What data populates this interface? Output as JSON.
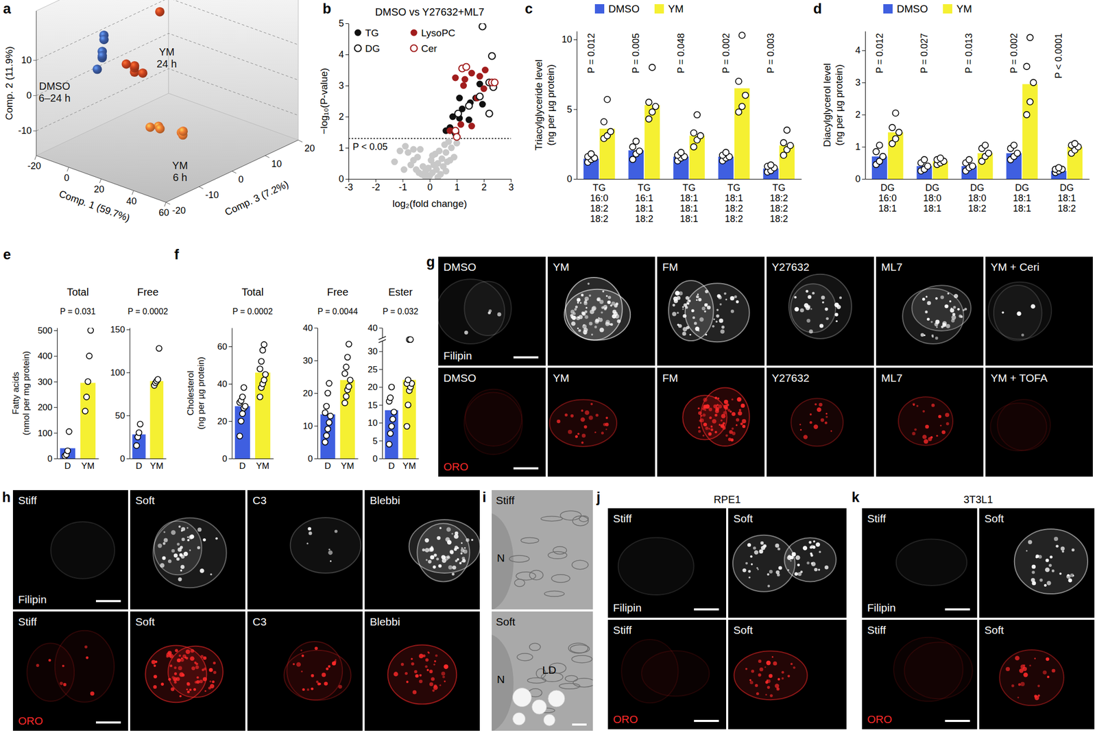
{
  "chart_data": [
    {
      "panel": "a",
      "type": "scatter3d",
      "x_label": "Comp. 1 (59.7%)",
      "y_label": "Comp. 2 (11.9%)",
      "z_label": "Comp. 3 (7.2%)",
      "xlim": [
        -20,
        60
      ],
      "xticks": [
        -20,
        0,
        20,
        40,
        60
      ],
      "ylim": [
        -17,
        24
      ],
      "yticks": [
        -10,
        0,
        10
      ],
      "zlim": [
        -20,
        20
      ],
      "zticks": [
        -20,
        -10,
        0,
        10,
        20
      ],
      "grid": true,
      "series": [
        {
          "name": "DMSO 6–24 h",
          "color": "#3d5ea8",
          "x": [
            -15,
            -14,
            -12,
            -16,
            -13,
            -17
          ],
          "y": [
            10,
            6,
            5,
            4,
            2,
            8
          ],
          "z": [
            -2,
            -3,
            -4,
            -2,
            -5,
            -1
          ]
        },
        {
          "name": "YM 24 h",
          "color": "#c9431f",
          "x": [
            10,
            12,
            8,
            11,
            9,
            -5
          ],
          "y": [
            5,
            7,
            6,
            4,
            8,
            13
          ],
          "z": [
            -5,
            -6,
            -4,
            -3,
            -7,
            10
          ]
        },
        {
          "name": "YM 6 h",
          "color": "#ec7a32",
          "x": [
            35,
            40,
            45,
            38,
            50,
            42
          ],
          "y": [
            -4,
            -3,
            -5,
            -2,
            -4,
            -6
          ],
          "z": [
            -10,
            -12,
            -8,
            -14,
            -10,
            -6
          ]
        }
      ]
    },
    {
      "panel": "b",
      "type": "scatter",
      "title": "DMSO vs Y27632+ML7",
      "x_label": "log₂(fold change)",
      "y_label": "−log₁₀(P-value)",
      "xlim": [
        -3,
        3
      ],
      "xticks": [
        -3,
        -2,
        -1,
        0,
        1,
        2,
        3
      ],
      "ylim": [
        0,
        5
      ],
      "yticks": [
        0,
        1,
        2,
        3,
        4,
        5
      ],
      "legend": "upper left",
      "reference_line": {
        "y": 1.3,
        "label": "P < 0.05"
      },
      "series": [
        {
          "color": "#c8c8c8",
          "marker": "circle",
          "x": [
            -1.3,
            -1.1,
            -0.9,
            -0.8,
            -0.7,
            -0.6,
            -0.5,
            -0.45,
            -0.4,
            -0.3,
            -0.25,
            -0.2,
            -0.15,
            -0.1,
            -0.05,
            0,
            0.05,
            0.1,
            0.15,
            0.2,
            0.25,
            0.3,
            0.35,
            0.4,
            0.45,
            0.5,
            0.55,
            0.6,
            0.65,
            0.7,
            0.8,
            0.9,
            1.0,
            -0.95,
            -0.35,
            0.1,
            0.3,
            0.6,
            0.75,
            -0.6
          ],
          "y": [
            0.55,
            0.9,
            1.05,
            0.85,
            0.45,
            0.6,
            0.3,
            0.7,
            0.2,
            0.15,
            0.4,
            0.1,
            0.25,
            0.05,
            0.35,
            0.1,
            0.6,
            0.2,
            0.45,
            0.8,
            0.3,
            0.5,
            0.9,
            0.15,
            0.65,
            0.4,
            1.1,
            0.85,
            0.55,
            1.2,
            1.0,
            0.7,
            1.15,
            0.3,
            0.95,
            0.75,
            0.05,
            0.25,
            0.6,
            0.95
          ]
        },
        {
          "name": "TG",
          "color": "#111111",
          "marker": "circle",
          "x": [
            1.1,
            1.5,
            1.95,
            0.85,
            1.1,
            1.45,
            0.75,
            0.95,
            1.2,
            1.85,
            1.7,
            0.6
          ],
          "y": [
            2.6,
            2.45,
            2.4,
            2.0,
            1.95,
            1.9,
            1.65,
            1.45,
            2.25,
            3.05,
            2.6,
            1.55
          ]
        },
        {
          "name": "LysoPC",
          "color": "#a11d1d",
          "marker": "circle",
          "x": [
            1.25,
            1.55,
            1.3,
            1.85,
            2.0,
            2.05,
            1.75,
            0.95,
            1.55,
            0.75,
            1.15
          ],
          "y": [
            3.0,
            3.4,
            3.2,
            3.3,
            2.9,
            3.5,
            2.6,
            3.25,
            1.7,
            1.55,
            1.75
          ]
        },
        {
          "name": "DG",
          "color": "#111111",
          "marker": "open-circle",
          "x": [
            1.95,
            2.3,
            2.2,
            1.85,
            2.2,
            1.45,
            1.05,
            0.95,
            2.35
          ],
          "y": [
            4.9,
            3.95,
            3.1,
            2.65,
            2.1,
            2.35,
            2.1,
            1.5,
            2.95
          ]
        },
        {
          "name": "Cer",
          "color": "#a11d1d",
          "marker": "open-circle",
          "x": [
            1.2,
            1.35,
            0.95,
            2.3,
            2.4,
            1.0
          ],
          "y": [
            3.55,
            3.6,
            1.55,
            3.1,
            3.1,
            1.35
          ]
        }
      ]
    },
    {
      "panel": "c",
      "type": "bar",
      "y_label": "Triacylglyceride level (ng per µg protein)",
      "legend": "top",
      "categories": [
        "TG 16:0 18:2 18:2",
        "TG 16:1 18:1 18:2",
        "TG 18:1 18:1 18:1",
        "TG 18:1 18:2 18:2",
        "TG 18:2 18:2 18:2"
      ],
      "ylim": [
        0,
        10.6
      ],
      "yticks": [
        0,
        5,
        10
      ],
      "p_values": [
        "P = 0.012",
        "P = 0.005",
        "P = 0.048",
        "P = 0.002",
        "P = 0.003"
      ],
      "series": [
        {
          "name": "DMSO",
          "color": "#3f5fe0",
          "values": [
            1.45,
            2.05,
            1.6,
            1.6,
            0.75
          ],
          "points": [
            [
              1.2,
              1.4,
              1.5,
              1.6,
              1.8
            ],
            [
              1.4,
              1.8,
              2.0,
              2.3,
              2.7
            ],
            [
              1.3,
              1.5,
              1.6,
              1.7,
              1.9
            ],
            [
              1.3,
              1.5,
              1.6,
              1.7,
              1.9
            ],
            [
              0.5,
              0.6,
              0.8,
              0.9,
              1.0
            ]
          ]
        },
        {
          "name": "YM",
          "color": "#f5f032",
          "values": [
            3.6,
            5.3,
            3.1,
            6.5,
            2.4
          ],
          "points": [
            [
              2.9,
              3.1,
              3.4,
              4.1,
              5.7
            ],
            [
              4.3,
              4.8,
              5.2,
              5.5,
              8.0
            ],
            [
              2.3,
              2.8,
              3.1,
              3.3,
              4.6
            ],
            [
              4.8,
              5.2,
              6.0,
              7.0,
              10.3
            ],
            [
              1.7,
              2.1,
              2.4,
              2.6,
              3.5
            ]
          ]
        }
      ]
    },
    {
      "panel": "d",
      "type": "bar",
      "y_label": "Diacylglycerol level (ng per µg protein)",
      "legend": "top",
      "categories": [
        "DG 16:0 18:1",
        "DG 18:0 18:1",
        "DG 18:0 18:2",
        "DG 18:1 18:1",
        "DG 18:1 18:2"
      ],
      "ylim": [
        0,
        4.6
      ],
      "yticks": [
        0,
        1,
        2,
        3,
        4
      ],
      "p_values": [
        "P = 0.012",
        "P = 0.027",
        "P = 0.013",
        "P = 0.002",
        "P < 0.0001"
      ],
      "series": [
        {
          "name": "DMSO",
          "color": "#3f5fe0",
          "values": [
            0.7,
            0.4,
            0.4,
            0.8,
            0.25
          ],
          "points": [
            [
              0.45,
              0.55,
              0.7,
              0.85,
              1.05
            ],
            [
              0.25,
              0.3,
              0.4,
              0.5,
              0.6
            ],
            [
              0.25,
              0.35,
              0.4,
              0.5,
              0.6
            ],
            [
              0.6,
              0.7,
              0.8,
              0.95,
              1.05
            ],
            [
              0.2,
              0.25,
              0.3,
              0.3,
              0.35
            ]
          ]
        },
        {
          "name": "YM",
          "color": "#f5f032",
          "values": [
            1.45,
            0.55,
            0.8,
            2.95,
            1.0
          ],
          "points": [
            [
              1.1,
              1.25,
              1.45,
              1.6,
              2.05
            ],
            [
              0.45,
              0.5,
              0.55,
              0.6,
              0.65
            ],
            [
              0.55,
              0.7,
              0.8,
              0.95,
              1.05
            ],
            [
              2.0,
              2.4,
              3.0,
              3.5,
              4.4
            ],
            [
              0.8,
              0.9,
              1.0,
              1.05,
              1.1
            ]
          ]
        }
      ]
    },
    {
      "panel": "e",
      "type": "bar",
      "title": "Total",
      "p_value": "P = 0.031",
      "y_label": "Fatty acids (nmol per mg protein)",
      "categories": [
        "D",
        "YM"
      ],
      "values": [
        40,
        295
      ],
      "colors": [
        "#3f5fe0",
        "#f5f032"
      ],
      "points": [
        [
          10,
          15,
          30,
          105
        ],
        [
          185,
          240,
          300,
          400,
          500
        ]
      ],
      "ylim": [
        0,
        510
      ],
      "yticks": [
        0,
        100,
        200,
        300,
        400,
        500
      ]
    },
    {
      "type": "bar",
      "title": "Free",
      "p_value": "P = 0.0002",
      "categories": [
        "D",
        "YM"
      ],
      "values": [
        28,
        90
      ],
      "colors": [
        "#3f5fe0",
        "#f5f032"
      ],
      "points": [
        [
          15,
          25,
          30,
          40
        ],
        [
          85,
          88,
          90,
          92,
          128
        ]
      ],
      "ylim": [
        0,
        152
      ],
      "yticks": [
        0,
        50,
        100,
        150
      ]
    },
    {
      "panel": "f",
      "type": "bar",
      "title": "Total",
      "p_value": "P = 0.0002",
      "y_label": "Cholesterol (ng per µg protein)",
      "categories": [
        "D",
        "YM"
      ],
      "values": [
        28,
        46
      ],
      "colors": [
        "#3f5fe0",
        "#f5f032"
      ],
      "points": [
        [
          12,
          20,
          24,
          27,
          28,
          30,
          31,
          33,
          38
        ],
        [
          33,
          38,
          40,
          42,
          45,
          48,
          52,
          58,
          61
        ]
      ],
      "ylim": [
        0,
        70
      ],
      "yticks": [
        0,
        20,
        40,
        60
      ]
    },
    {
      "type": "bar",
      "title": "Free",
      "p_value": "P = 0.0044",
      "categories": [
        "D",
        "YM"
      ],
      "values": [
        13.5,
        24
      ],
      "colors": [
        "#3f5fe0",
        "#f5f032"
      ],
      "points": [
        [
          5,
          7,
          9,
          11,
          13,
          14,
          16,
          20,
          23
        ],
        [
          17,
          19,
          21,
          22,
          24,
          26,
          28,
          31,
          35
        ]
      ],
      "ylim": [
        0,
        40
      ],
      "yticks": [
        0,
        10,
        20,
        30,
        40
      ]
    },
    {
      "type": "bar",
      "title": "Ester",
      "p_value": "P = 0.032",
      "categories": [
        "D",
        "YM"
      ],
      "values": [
        13.5,
        22
      ],
      "colors": [
        "#3f5fe0",
        "#f5f032"
      ],
      "points": [
        [
          4,
          7,
          9,
          11,
          13,
          16,
          17,
          20
        ],
        [
          9,
          15,
          19,
          20,
          21,
          21,
          22,
          35,
          35
        ]
      ],
      "ylim": [
        0,
        40
      ],
      "yticks": [
        0,
        5,
        10,
        15,
        20,
        25,
        30,
        40
      ]
    }
  ],
  "image_panels": [
    {
      "panel": "g",
      "rows": [
        {
          "stain": "Filipin",
          "color": "#ffffff",
          "labels": [
            "DMSO",
            "YM",
            "FM",
            "Y27632",
            "ML7",
            "YM + Ceri"
          ]
        },
        {
          "stain": "ORO",
          "color": "#ff2a2a",
          "labels": [
            "DMSO",
            "YM",
            "FM",
            "Y27632",
            "ML7",
            "YM + TOFA"
          ]
        }
      ]
    },
    {
      "panel": "h",
      "rows": [
        {
          "stain": "Filipin",
          "color": "#ffffff",
          "labels": [
            "Stiff",
            "Soft",
            "C3",
            "Blebbi"
          ]
        },
        {
          "stain": "ORO",
          "color": "#ff2a2a",
          "labels": [
            "Stiff",
            "Soft",
            "C3",
            "Blebbi"
          ]
        }
      ]
    },
    {
      "panel": "i",
      "tiles": [
        {
          "labels": [
            "Stiff",
            "N"
          ]
        },
        {
          "labels": [
            "Soft",
            "N",
            "LD"
          ]
        }
      ]
    },
    {
      "panel": "j",
      "title": "RPE1",
      "rows": [
        {
          "stain": "Filipin",
          "color": "#ffffff",
          "labels": [
            "Stiff",
            "Soft"
          ]
        },
        {
          "stain": "ORO",
          "color": "#ff2a2a",
          "labels": [
            "Stiff",
            "Soft"
          ]
        }
      ]
    },
    {
      "panel": "k",
      "title": "3T3L1",
      "rows": [
        {
          "stain": "Filipin",
          "color": "#ffffff",
          "labels": [
            "Stiff",
            "Soft"
          ]
        },
        {
          "stain": "ORO",
          "color": "#ff2a2a",
          "labels": [
            "Stiff",
            "Soft"
          ]
        }
      ]
    }
  ]
}
